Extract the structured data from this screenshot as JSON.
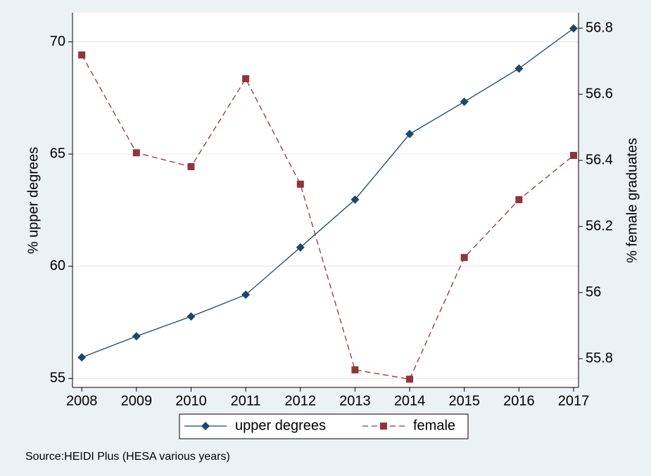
{
  "chart_data": {
    "type": "line",
    "x": [
      2008,
      2009,
      2010,
      2011,
      2012,
      2013,
      2014,
      2015,
      2016,
      2017
    ],
    "xlim": [
      2007.83,
      2017.09
    ],
    "xticks": [
      2008,
      2009,
      2010,
      2011,
      2012,
      2013,
      2014,
      2015,
      2016,
      2017
    ],
    "ylabel": "% upper degrees",
    "ylim": [
      54.6,
      71.3
    ],
    "yticks": [
      55,
      60,
      65,
      70
    ],
    "y2label": "% female graduates",
    "y2lim": [
      55.713,
      56.847
    ],
    "y2ticks": [
      55.8,
      56,
      56.2,
      56.4,
      56.6,
      56.8
    ],
    "grid": true,
    "legend": "bottom",
    "series": [
      {
        "name": "upper degrees",
        "color": "#1a476f",
        "marker": "diamond",
        "dash": "solid",
        "values": [
          55.94,
          56.88,
          57.76,
          58.73,
          60.84,
          62.97,
          65.89,
          67.33,
          68.81,
          70.6
        ]
      },
      {
        "name": "female",
        "color": "#90353b",
        "marker": "square",
        "dash": "dashed",
        "axis": "y2",
        "values": [
          56.719,
          56.423,
          56.381,
          56.647,
          56.328,
          55.766,
          55.738,
          56.106,
          56.281,
          56.415
        ]
      }
    ],
    "note": "Source:HEIDI Plus (HESA various years)"
  }
}
